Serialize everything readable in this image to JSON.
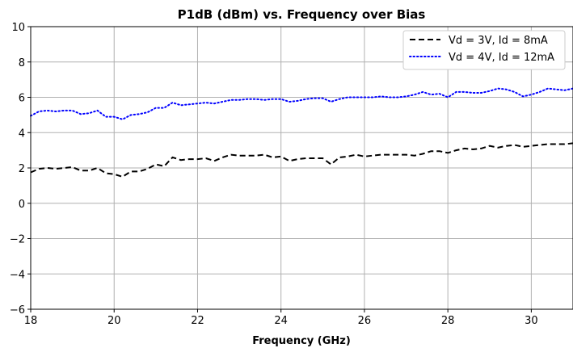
{
  "chart_data": {
    "type": "line",
    "title": "P1dB (dBm) vs. Frequency over Bias",
    "xlabel": "Frequency (GHz)",
    "ylabel": "",
    "xlim": [
      18,
      31
    ],
    "ylim": [
      -6,
      10
    ],
    "x_ticks": [
      "18",
      "20",
      "22",
      "24",
      "26",
      "28",
      "30"
    ],
    "y_ticks": [
      "−6",
      "−4",
      "−2",
      "0",
      "2",
      "4",
      "6",
      "8",
      "10"
    ],
    "grid": true,
    "legend_position": "top-right",
    "x": [
      18.0,
      18.2,
      18.4,
      18.6,
      18.8,
      19.0,
      19.2,
      19.4,
      19.6,
      19.8,
      20.0,
      20.2,
      20.4,
      20.6,
      20.8,
      21.0,
      21.2,
      21.4,
      21.6,
      21.8,
      22.0,
      22.2,
      22.4,
      22.6,
      22.8,
      23.0,
      23.2,
      23.4,
      23.6,
      23.8,
      24.0,
      24.2,
      24.4,
      24.6,
      24.8,
      25.0,
      25.2,
      25.4,
      25.6,
      25.8,
      26.0,
      26.2,
      26.4,
      26.6,
      26.8,
      27.0,
      27.2,
      27.4,
      27.6,
      27.8,
      28.0,
      28.2,
      28.4,
      28.6,
      28.8,
      29.0,
      29.2,
      29.4,
      29.6,
      29.8,
      30.0,
      30.2,
      30.4,
      30.6,
      30.8,
      31.0
    ],
    "series": [
      {
        "name": "Vd = 3V, Id = 8mA",
        "color": "#000000",
        "style": "dashed",
        "values": [
          1.75,
          1.95,
          2.0,
          1.95,
          2.0,
          2.05,
          1.85,
          1.85,
          2.0,
          1.7,
          1.65,
          1.5,
          1.8,
          1.8,
          1.95,
          2.2,
          2.1,
          2.6,
          2.45,
          2.5,
          2.5,
          2.55,
          2.4,
          2.6,
          2.75,
          2.7,
          2.7,
          2.7,
          2.75,
          2.6,
          2.65,
          2.4,
          2.5,
          2.55,
          2.55,
          2.55,
          2.2,
          2.6,
          2.65,
          2.75,
          2.65,
          2.7,
          2.75,
          2.75,
          2.75,
          2.75,
          2.7,
          2.8,
          2.95,
          2.95,
          2.85,
          3.0,
          3.1,
          3.05,
          3.1,
          3.25,
          3.15,
          3.25,
          3.3,
          3.2,
          3.25,
          3.3,
          3.35,
          3.35,
          3.35,
          3.4
        ]
      },
      {
        "name": "Vd = 4V, Id = 12mA",
        "color": "#0000ff",
        "style": "dotted",
        "values": [
          4.95,
          5.2,
          5.25,
          5.2,
          5.25,
          5.25,
          5.05,
          5.1,
          5.25,
          4.9,
          4.9,
          4.75,
          5.0,
          5.05,
          5.15,
          5.4,
          5.4,
          5.7,
          5.55,
          5.6,
          5.65,
          5.7,
          5.65,
          5.75,
          5.85,
          5.85,
          5.9,
          5.9,
          5.85,
          5.9,
          5.9,
          5.75,
          5.8,
          5.9,
          5.95,
          5.95,
          5.75,
          5.9,
          6.0,
          6.0,
          6.0,
          6.0,
          6.05,
          6.0,
          6.0,
          6.05,
          6.15,
          6.3,
          6.15,
          6.2,
          6.0,
          6.3,
          6.3,
          6.25,
          6.25,
          6.35,
          6.5,
          6.45,
          6.3,
          6.05,
          6.15,
          6.3,
          6.5,
          6.45,
          6.4,
          6.5
        ]
      }
    ]
  }
}
